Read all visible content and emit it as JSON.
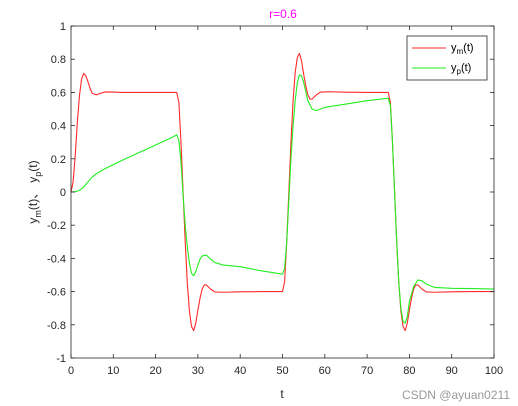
{
  "chart_data": {
    "type": "line",
    "title": "r=0.6",
    "title_color": "#ff00ff",
    "xlabel": "t",
    "ylabel_parts": {
      "ym_base": "y",
      "ym_sub": "m",
      "ym_arg": "(t)",
      "sep": "、",
      "yp_base": "y",
      "yp_sub": "p",
      "yp_arg": "(t)"
    },
    "xlim": [
      0,
      100
    ],
    "ylim": [
      -1,
      1
    ],
    "xticks": [
      "0",
      "10",
      "20",
      "30",
      "40",
      "50",
      "60",
      "70",
      "80",
      "90",
      "100"
    ],
    "yticks": [
      "1",
      "0.8",
      "0.6",
      "0.4",
      "0.2",
      "0",
      "-0.2",
      "-0.4",
      "-0.6",
      "-0.8",
      "-1"
    ],
    "grid": false,
    "legend_position": "top-right",
    "series": [
      {
        "name_base": "y",
        "name_sub": "m",
        "name_arg": "(t)",
        "color": "#ff2a2a",
        "x": [
          0,
          0.5,
          1,
          1.5,
          2,
          2.5,
          3,
          3.5,
          4,
          4.5,
          5,
          6,
          7,
          8,
          9,
          10,
          12,
          15,
          20,
          25,
          25.5,
          26,
          26.5,
          27,
          27.5,
          28,
          28.5,
          29,
          29.5,
          30,
          30.5,
          31,
          31.5,
          32,
          33,
          34,
          36,
          40,
          45,
          50,
          50.5,
          51,
          51.5,
          52,
          52.5,
          53,
          53.5,
          54,
          54.5,
          55,
          55.5,
          56,
          56.5,
          57,
          58,
          59,
          61,
          65,
          70,
          75,
          75.5,
          76,
          76.5,
          77,
          77.5,
          78,
          78.5,
          79,
          79.5,
          80,
          80.5,
          81,
          81.5,
          82,
          83,
          84,
          86,
          90,
          95,
          100
        ],
        "y": [
          0,
          0.06,
          0.22,
          0.42,
          0.58,
          0.68,
          0.715,
          0.7,
          0.665,
          0.625,
          0.595,
          0.585,
          0.595,
          0.602,
          0.603,
          0.602,
          0.6,
          0.6,
          0.6,
          0.6,
          0.54,
          0.3,
          0.0,
          -0.3,
          -0.55,
          -0.72,
          -0.81,
          -0.835,
          -0.79,
          -0.71,
          -0.64,
          -0.585,
          -0.56,
          -0.56,
          -0.585,
          -0.602,
          -0.604,
          -0.601,
          -0.6,
          -0.6,
          -0.54,
          -0.3,
          0.0,
          0.3,
          0.55,
          0.72,
          0.81,
          0.835,
          0.79,
          0.71,
          0.64,
          0.585,
          0.56,
          0.56,
          0.585,
          0.602,
          0.604,
          0.601,
          0.6,
          0.6,
          0.54,
          0.3,
          0.0,
          -0.3,
          -0.55,
          -0.72,
          -0.81,
          -0.835,
          -0.79,
          -0.71,
          -0.64,
          -0.585,
          -0.56,
          -0.56,
          -0.585,
          -0.602,
          -0.604,
          -0.601,
          -0.6,
          -0.6
        ]
      },
      {
        "name_base": "y",
        "name_sub": "p",
        "name_arg": "(t)",
        "color": "#22ee22",
        "x": [
          0,
          1,
          2,
          3,
          4,
          5,
          6,
          7,
          8,
          10,
          12,
          15,
          18,
          21,
          24,
          25,
          25.5,
          26,
          26.5,
          27,
          27.5,
          28,
          28.5,
          29,
          29.5,
          30,
          30.5,
          31,
          32,
          33,
          34,
          36,
          40,
          45,
          50,
          50.5,
          51,
          51.5,
          52,
          52.5,
          53,
          53.5,
          54,
          54.5,
          55,
          56,
          57,
          58,
          60,
          65,
          70,
          75,
          75.5,
          76,
          76.5,
          77,
          77.5,
          78,
          78.5,
          79,
          79.5,
          80,
          81,
          82,
          83,
          84,
          86,
          90,
          95,
          100
        ],
        "y": [
          0,
          0.002,
          0.01,
          0.03,
          0.06,
          0.09,
          0.11,
          0.125,
          0.14,
          0.165,
          0.19,
          0.225,
          0.26,
          0.295,
          0.33,
          0.345,
          0.31,
          0.18,
          -0.02,
          -0.2,
          -0.33,
          -0.43,
          -0.49,
          -0.505,
          -0.48,
          -0.44,
          -0.405,
          -0.385,
          -0.38,
          -0.405,
          -0.425,
          -0.44,
          -0.45,
          -0.475,
          -0.495,
          -0.46,
          -0.3,
          -0.05,
          0.2,
          0.4,
          0.55,
          0.66,
          0.705,
          0.7,
          0.66,
          0.55,
          0.5,
          0.49,
          0.51,
          0.53,
          0.55,
          0.565,
          0.52,
          0.3,
          0.0,
          -0.3,
          -0.55,
          -0.7,
          -0.78,
          -0.79,
          -0.75,
          -0.66,
          -0.57,
          -0.53,
          -0.535,
          -0.555,
          -0.575,
          -0.58,
          -0.582,
          -0.585
        ]
      }
    ]
  },
  "watermark": "CSDN @ayuan0211"
}
